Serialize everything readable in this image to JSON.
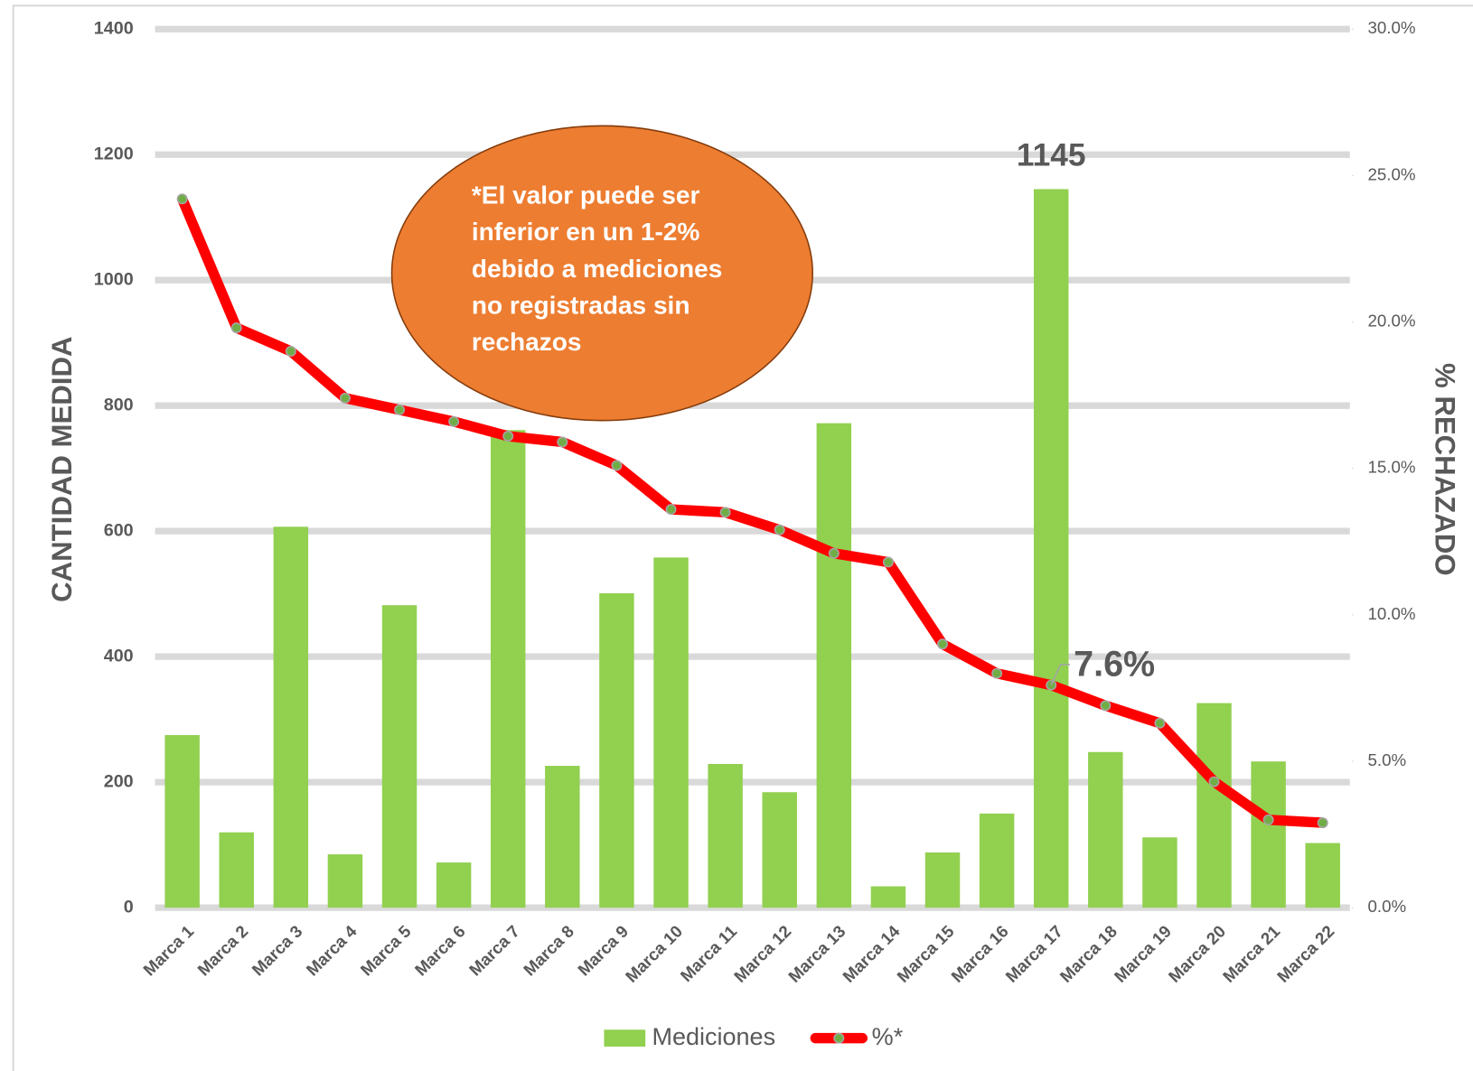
{
  "chart_data": {
    "type": "bar",
    "categories": [
      "Marca 1",
      "Marca 2",
      "Marca 3",
      "Marca 4",
      "Marca 5",
      "Marca 6",
      "Marca 7",
      "Marca 8",
      "Marca 9",
      "Marca 10",
      "Marca 11",
      "Marca 12",
      "Marca 13",
      "Marca 14",
      "Marca 15",
      "Marca 16",
      "Marca 17",
      "Marca 18",
      "Marca 19",
      "Marca 20",
      "Marca 21",
      "Marca 22"
    ],
    "series": [
      {
        "name": "Mediciones",
        "type": "bar",
        "color": "#92d050",
        "values": [
          275,
          120,
          607,
          85,
          482,
          72,
          761,
          226,
          501,
          558,
          229,
          184,
          772,
          34,
          88,
          150,
          1145,
          248,
          112,
          326,
          233,
          103
        ],
        "value_labels": [
          null,
          null,
          null,
          null,
          null,
          null,
          null,
          null,
          null,
          null,
          null,
          null,
          null,
          null,
          null,
          null,
          "1145",
          null,
          null,
          null,
          null,
          null
        ]
      },
      {
        "name": "%*",
        "type": "line",
        "axis": "y2",
        "color": "#ff0000",
        "marker_color": "#70ad47",
        "values": [
          24.2,
          19.8,
          19.0,
          17.4,
          17.0,
          16.6,
          16.1,
          15.9,
          15.1,
          13.6,
          13.5,
          12.9,
          12.1,
          11.8,
          9.0,
          8.0,
          7.6,
          6.9,
          6.3,
          4.3,
          3.0,
          2.9
        ],
        "value_labels": [
          null,
          null,
          null,
          null,
          null,
          null,
          null,
          null,
          null,
          null,
          null,
          null,
          null,
          null,
          null,
          null,
          "7.6%",
          null,
          null,
          null,
          null,
          null
        ]
      }
    ],
    "ylabel": "CANTIDAD MEDIDA",
    "y2label": "% RECHAZADO",
    "ylim": [
      0,
      1400
    ],
    "yticks": [
      0,
      200,
      400,
      600,
      800,
      1000,
      1200,
      1400
    ],
    "y2lim": [
      0,
      30
    ],
    "y2ticks": [
      {
        "value": 0,
        "label": "0.0%"
      },
      {
        "value": 5,
        "label": "5.0%"
      },
      {
        "value": 10,
        "label": "10.0%"
      },
      {
        "value": 15,
        "label": "15.0%"
      },
      {
        "value": 20,
        "label": "20.0%"
      },
      {
        "value": 25,
        "label": "25.0%"
      },
      {
        "value": 30,
        "label": "30.0%"
      }
    ],
    "grid": true,
    "legend": "bottom",
    "annotation": {
      "lines": [
        "*El valor puede ser",
        "inferior en un 1-2%",
        "debido a mediciones",
        "no registradas sin",
        "rechazos"
      ]
    }
  }
}
